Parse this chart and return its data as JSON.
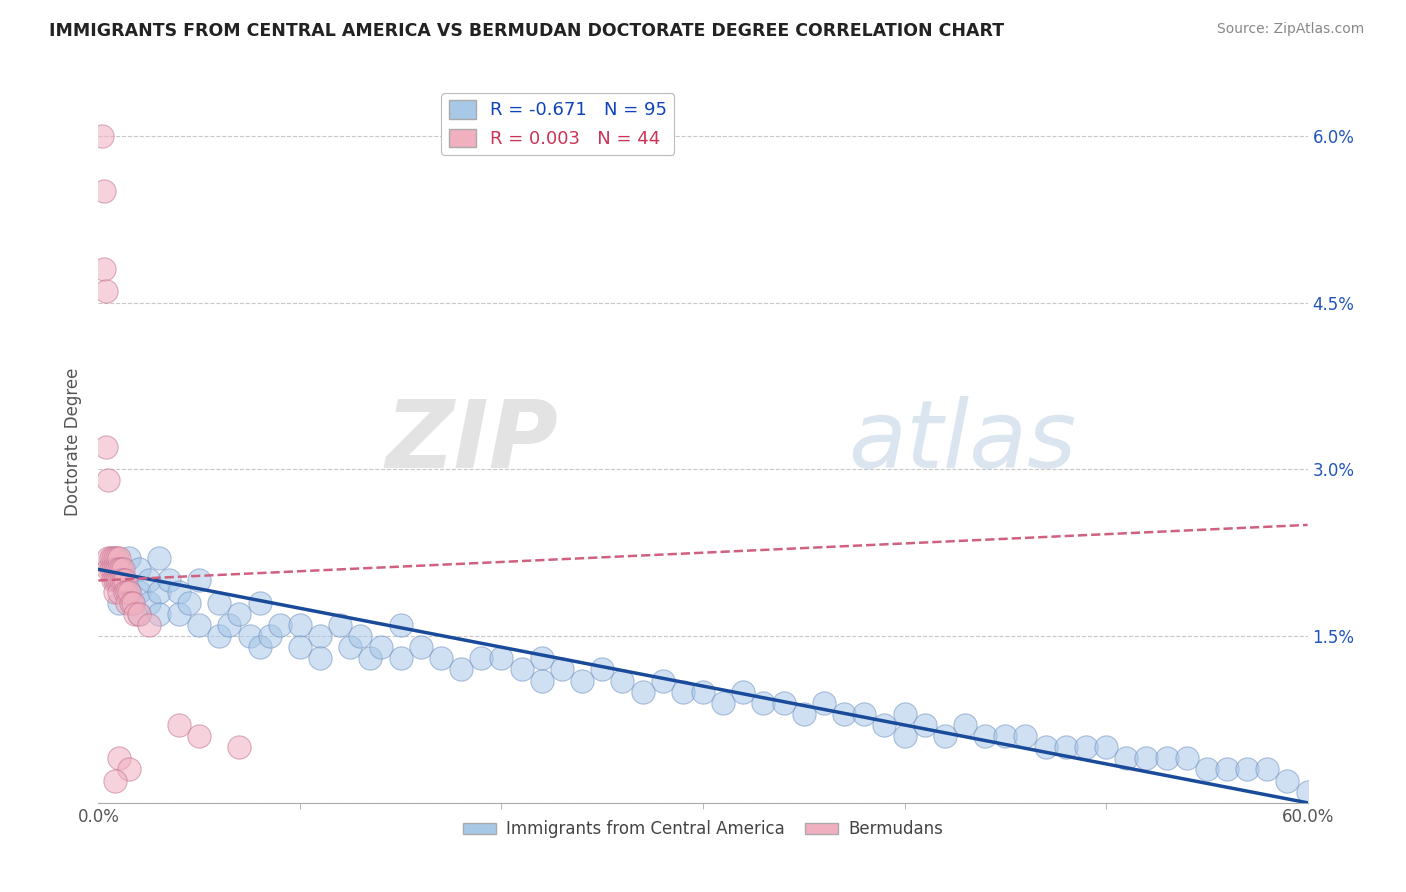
{
  "title": "IMMIGRANTS FROM CENTRAL AMERICA VS BERMUDAN DOCTORATE DEGREE CORRELATION CHART",
  "source": "Source: ZipAtlas.com",
  "ylabel": "Doctorate Degree",
  "legend_label_blue": "Immigrants from Central America",
  "legend_label_pink": "Bermudans",
  "r_blue": -0.671,
  "n_blue": 95,
  "r_pink": 0.003,
  "n_pink": 44,
  "xmin": 0.0,
  "xmax": 0.6,
  "ymin": 0.0,
  "ymax": 0.065,
  "yticks": [
    0.0,
    0.015,
    0.03,
    0.045,
    0.06
  ],
  "ytick_labels_right": [
    "",
    "1.5%",
    "3.0%",
    "4.5%",
    "6.0%"
  ],
  "xtick_left_label": "0.0%",
  "xtick_right_label": "60.0%",
  "grid_color": "#c8c8c8",
  "blue_color": "#a8c8e8",
  "blue_edge_color": "#7090c0",
  "blue_line_color": "#1a4a9a",
  "pink_color": "#f0b0c0",
  "pink_edge_color": "#c07090",
  "pink_line_color": "#d06080",
  "watermark_zip": "ZIP",
  "watermark_atlas": "atlas",
  "blue_trend_x0": 0.0,
  "blue_trend_y0": 0.021,
  "blue_trend_x1": 0.6,
  "blue_trend_y1": 0.0,
  "pink_trend_x0": 0.0,
  "pink_trend_y0": 0.02,
  "pink_trend_x1": 0.6,
  "pink_trend_y1": 0.025,
  "blue_scatter_x": [
    0.01,
    0.01,
    0.015,
    0.015,
    0.02,
    0.02,
    0.02,
    0.025,
    0.025,
    0.03,
    0.03,
    0.03,
    0.035,
    0.04,
    0.04,
    0.045,
    0.05,
    0.05,
    0.06,
    0.06,
    0.065,
    0.07,
    0.075,
    0.08,
    0.08,
    0.085,
    0.09,
    0.1,
    0.1,
    0.11,
    0.11,
    0.12,
    0.125,
    0.13,
    0.135,
    0.14,
    0.15,
    0.15,
    0.16,
    0.17,
    0.18,
    0.19,
    0.2,
    0.21,
    0.22,
    0.22,
    0.23,
    0.24,
    0.25,
    0.26,
    0.27,
    0.28,
    0.29,
    0.3,
    0.31,
    0.32,
    0.33,
    0.34,
    0.35,
    0.36,
    0.37,
    0.38,
    0.39,
    0.4,
    0.4,
    0.41,
    0.42,
    0.43,
    0.44,
    0.45,
    0.46,
    0.47,
    0.48,
    0.49,
    0.5,
    0.51,
    0.52,
    0.53,
    0.54,
    0.55,
    0.56,
    0.57,
    0.58,
    0.59,
    0.6
  ],
  "blue_scatter_y": [
    0.02,
    0.018,
    0.022,
    0.019,
    0.021,
    0.019,
    0.017,
    0.02,
    0.018,
    0.022,
    0.019,
    0.017,
    0.02,
    0.019,
    0.017,
    0.018,
    0.02,
    0.016,
    0.018,
    0.015,
    0.016,
    0.017,
    0.015,
    0.018,
    0.014,
    0.015,
    0.016,
    0.016,
    0.014,
    0.015,
    0.013,
    0.016,
    0.014,
    0.015,
    0.013,
    0.014,
    0.016,
    0.013,
    0.014,
    0.013,
    0.012,
    0.013,
    0.013,
    0.012,
    0.013,
    0.011,
    0.012,
    0.011,
    0.012,
    0.011,
    0.01,
    0.011,
    0.01,
    0.01,
    0.009,
    0.01,
    0.009,
    0.009,
    0.008,
    0.009,
    0.008,
    0.008,
    0.007,
    0.008,
    0.006,
    0.007,
    0.006,
    0.007,
    0.006,
    0.006,
    0.006,
    0.005,
    0.005,
    0.005,
    0.005,
    0.004,
    0.004,
    0.004,
    0.004,
    0.003,
    0.003,
    0.003,
    0.003,
    0.002,
    0.001
  ],
  "pink_scatter_x": [
    0.002,
    0.003,
    0.003,
    0.004,
    0.004,
    0.005,
    0.005,
    0.005,
    0.006,
    0.006,
    0.007,
    0.007,
    0.007,
    0.008,
    0.008,
    0.008,
    0.008,
    0.009,
    0.009,
    0.009,
    0.01,
    0.01,
    0.01,
    0.01,
    0.011,
    0.011,
    0.012,
    0.012,
    0.013,
    0.013,
    0.014,
    0.014,
    0.015,
    0.016,
    0.017,
    0.018,
    0.02,
    0.025,
    0.04,
    0.05,
    0.07,
    0.01,
    0.015,
    0.008
  ],
  "pink_scatter_y": [
    0.06,
    0.055,
    0.048,
    0.046,
    0.032,
    0.029,
    0.022,
    0.021,
    0.022,
    0.021,
    0.022,
    0.021,
    0.02,
    0.022,
    0.021,
    0.02,
    0.019,
    0.022,
    0.021,
    0.02,
    0.022,
    0.021,
    0.02,
    0.019,
    0.021,
    0.02,
    0.021,
    0.02,
    0.02,
    0.019,
    0.019,
    0.018,
    0.019,
    0.018,
    0.018,
    0.017,
    0.017,
    0.016,
    0.007,
    0.006,
    0.005,
    0.004,
    0.003,
    0.002
  ]
}
